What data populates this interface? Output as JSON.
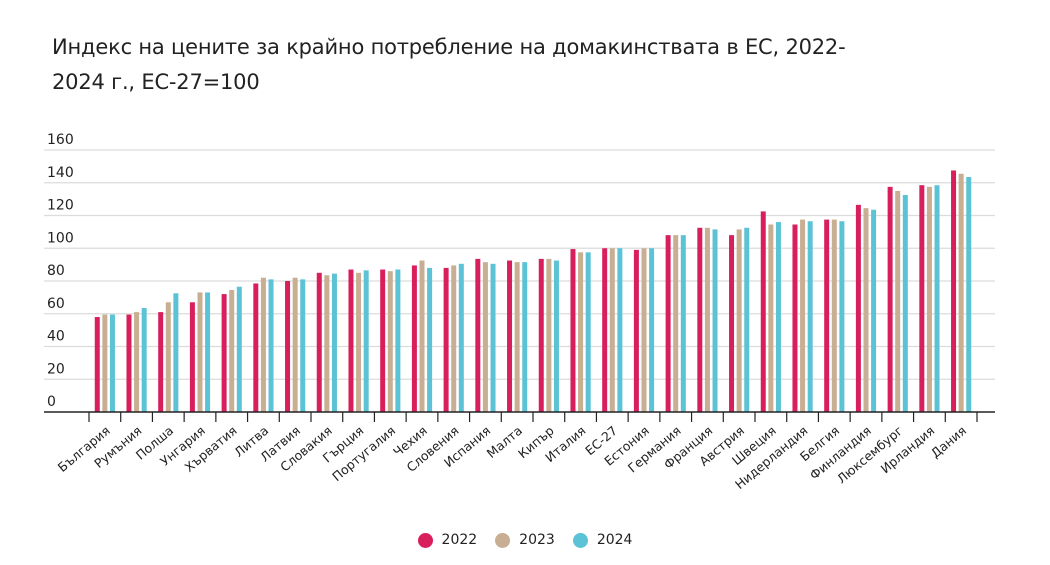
{
  "chart_data": {
    "type": "bar",
    "title": "Индекс на цените за крайно потребление на домакинствата в ЕС, 2022-2024 г., ЕС-27=100",
    "xlabel": "",
    "ylabel": "",
    "ylim": [
      0,
      160
    ],
    "yticks": [
      0,
      20,
      40,
      60,
      80,
      100,
      120,
      140,
      160
    ],
    "grid": true,
    "legend_position": "bottom-center",
    "categories": [
      "България",
      "Румъния",
      "Полша",
      "Унгария",
      "Хърватия",
      "Литва",
      "Латвия",
      "Словакия",
      "Гърция",
      "Португалия",
      "Чехия",
      "Словения",
      "Испания",
      "Малта",
      "Кипър",
      "Италия",
      "ЕС-27",
      "Естония",
      "Германия",
      "Франция",
      "Австрия",
      "Швеция",
      "Нидерландия",
      "Белгия",
      "Финландия",
      "Люксембург",
      "Ирландия",
      "Дания"
    ],
    "series": [
      {
        "name": "2022",
        "color": "#d81f5c",
        "values": [
          58,
          59.5,
          61,
          67,
          72,
          78.5,
          80,
          85,
          87,
          87,
          89.5,
          88,
          93.5,
          92.5,
          93.5,
          99.5,
          100,
          99,
          108,
          112.5,
          108,
          122.5,
          114.5,
          117.5,
          126.5,
          137.5,
          138.5,
          147.5
        ]
      },
      {
        "name": "2023",
        "color": "#c8ae92",
        "values": [
          59.5,
          61,
          67,
          73,
          74.5,
          82,
          82,
          83.5,
          85,
          86,
          92.5,
          89.5,
          91.5,
          91.5,
          93.5,
          97.5,
          100,
          100,
          108,
          112.5,
          111.5,
          114.5,
          117.5,
          117.5,
          124.5,
          135,
          137.5,
          145.5
        ]
      },
      {
        "name": "2024",
        "color": "#5bc3d5",
        "values": [
          59.5,
          63.5,
          72.5,
          73,
          76.5,
          81,
          81,
          84.5,
          86.5,
          87,
          88,
          90.5,
          90.5,
          91.5,
          92.5,
          97.5,
          100,
          100,
          108,
          111.5,
          112.5,
          116,
          116.5,
          116.5,
          123.5,
          132.5,
          138.5,
          143.5
        ]
      }
    ]
  },
  "title_line1": "Индекс на цените за крайно потребление на домакинствата в ЕС, 2022-",
  "title_line2": "2024 г., ЕС-27=100",
  "legend": [
    {
      "label": "2022",
      "color": "#d81f5c"
    },
    {
      "label": "2023",
      "color": "#c8ae92"
    },
    {
      "label": "2024",
      "color": "#5bc3d5"
    }
  ]
}
